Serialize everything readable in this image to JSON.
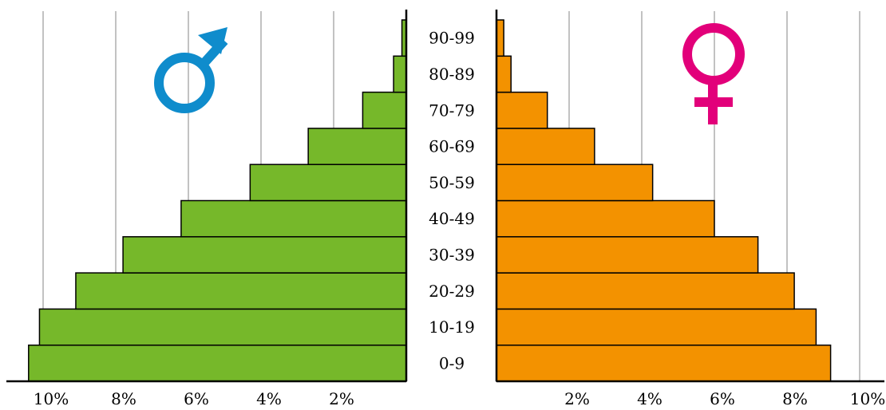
{
  "chart_data": {
    "type": "bar",
    "orientation": "horizontal",
    "layout": "population-pyramid",
    "categories": [
      "0-9",
      "10-19",
      "20-29",
      "30-39",
      "40-49",
      "50-59",
      "60-69",
      "70-79",
      "80-89",
      "90-99"
    ],
    "series": [
      {
        "name": "",
        "side": "left",
        "symbol": "male-symbol",
        "color": "#76b82a",
        "values": [
          10.4,
          10.1,
          9.1,
          7.8,
          6.2,
          4.3,
          2.7,
          1.2,
          0.35,
          0.12
        ]
      },
      {
        "name": "",
        "side": "right",
        "symbol": "female-symbol",
        "color": "#f39200",
        "values": [
          9.2,
          8.8,
          8.2,
          7.2,
          6.0,
          4.3,
          2.7,
          1.4,
          0.4,
          0.2
        ]
      }
    ],
    "left_ticks": [
      "10%",
      "8%",
      "6%",
      "4%",
      "2%"
    ],
    "right_ticks": [
      "2%",
      "4%",
      "6%",
      "8%",
      "10%"
    ],
    "xlim": [
      0,
      10
    ],
    "grid": true,
    "title": "",
    "xlabel": "",
    "ylabel": ""
  },
  "colors": {
    "male_symbol": "#0f8ccc",
    "female_symbol": "#e2007a",
    "grid": "#999999",
    "bar_outline": "#000000"
  }
}
